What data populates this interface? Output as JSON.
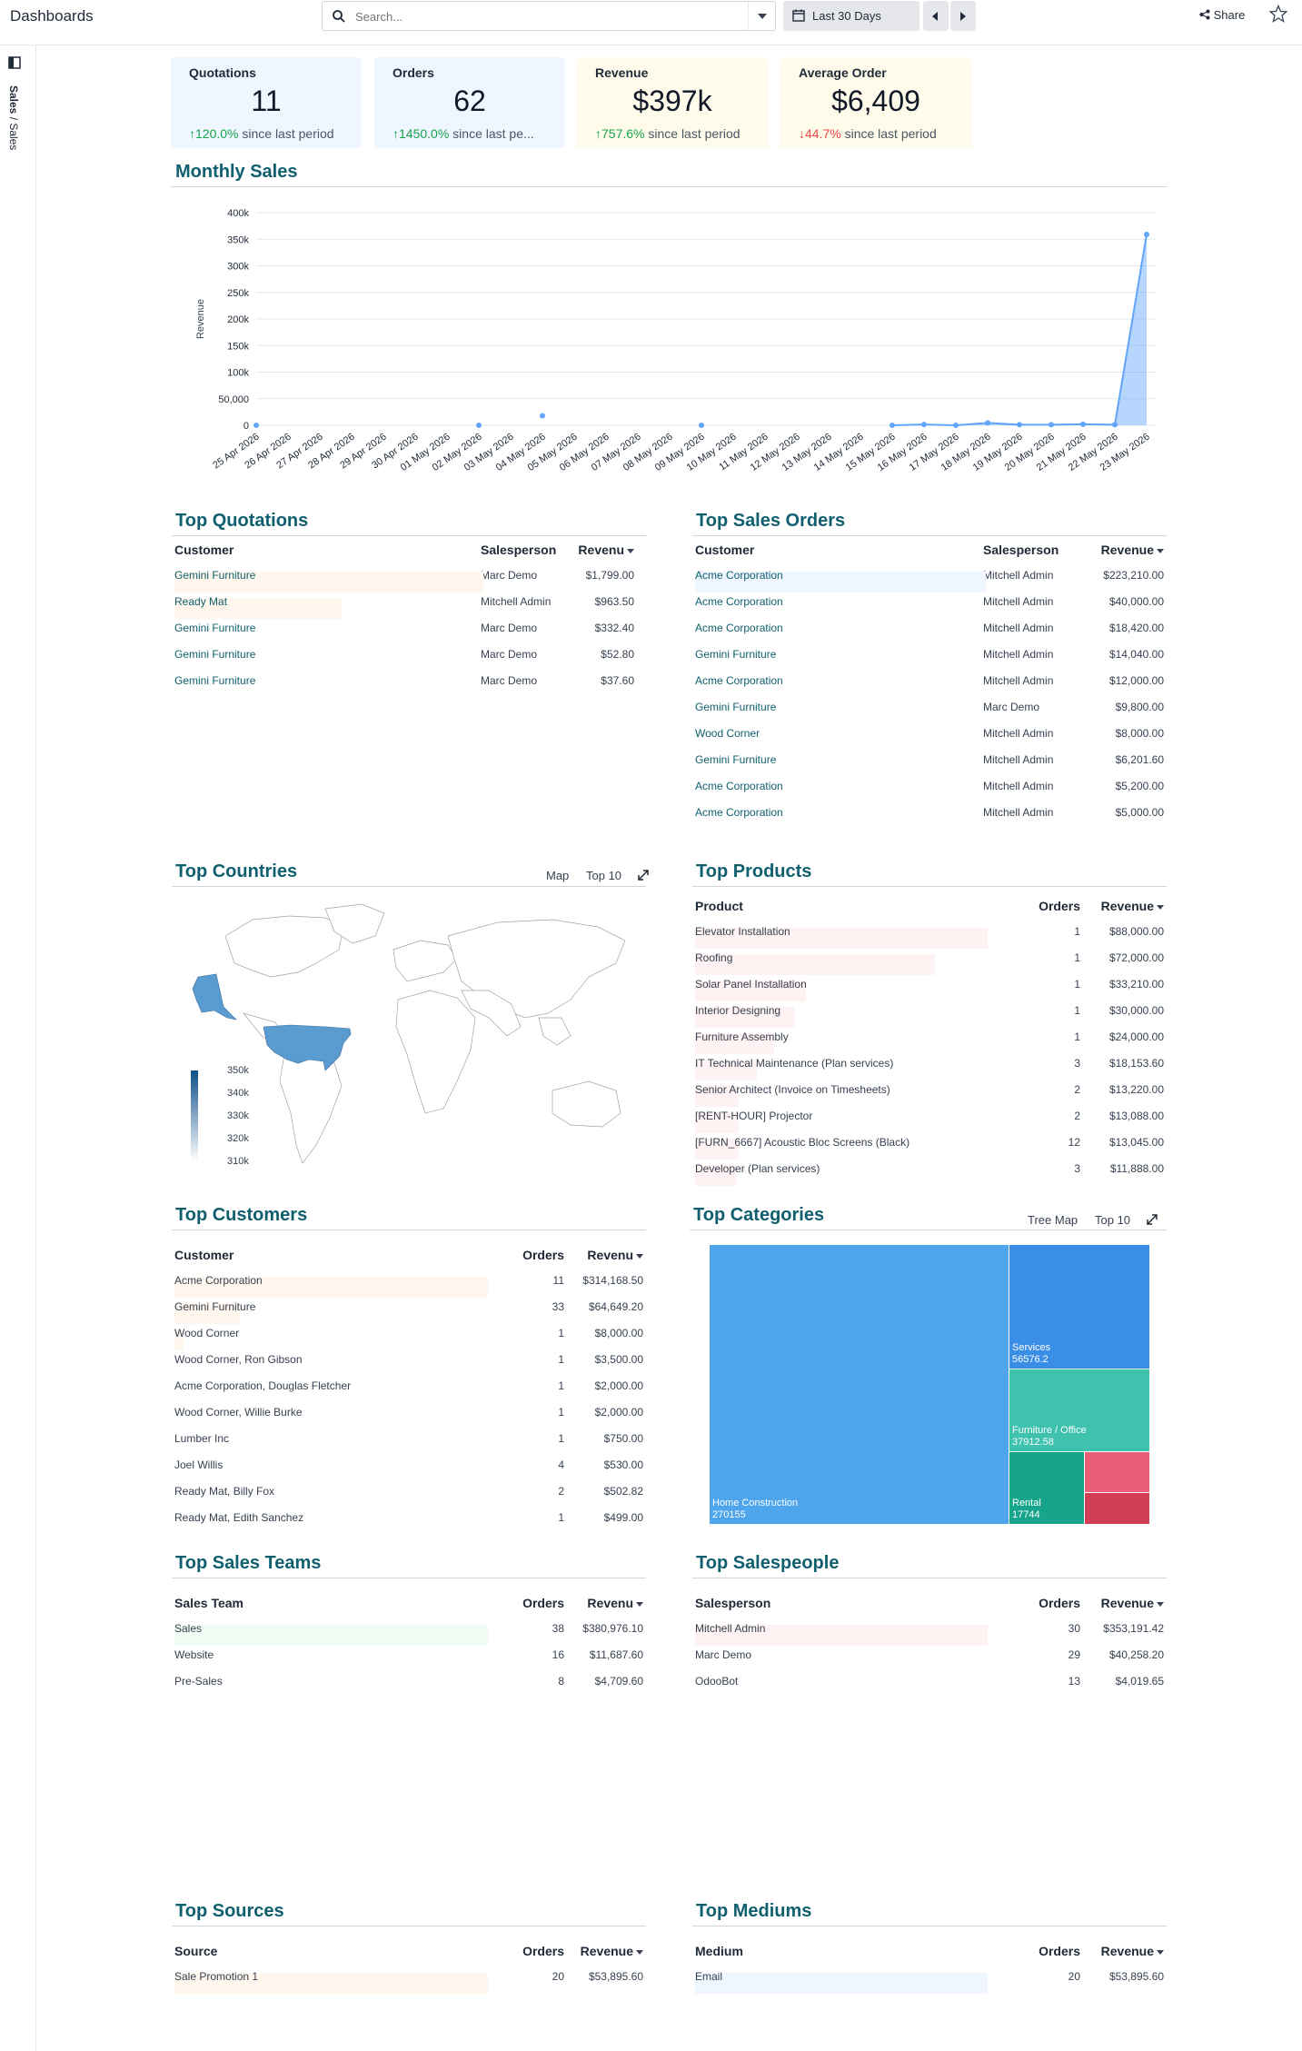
{
  "header": {
    "title": "Dashboards",
    "search_placeholder": "Search...",
    "date_range": "Last 30 Days",
    "share_label": "Share"
  },
  "sidebar": {
    "breadcrumb_bold": "Sales",
    "breadcrumb_rest": " / Sales"
  },
  "kpis": [
    {
      "title": "Quotations",
      "value": "11",
      "delta": "120.0%",
      "delta_dir": "up",
      "suffix": " since last period",
      "bg": "#eff6ff"
    },
    {
      "title": "Orders",
      "value": "62",
      "delta": "1450.0%",
      "delta_dir": "up",
      "suffix": " since last pe...",
      "bg": "#eff6ff"
    },
    {
      "title": "Revenue",
      "value": "$397k",
      "delta": "757.6%",
      "delta_dir": "up",
      "suffix": " since last period",
      "bg": "#fffbeb"
    },
    {
      "title": "Average Order",
      "value": "$6,409",
      "delta": "44.7%",
      "delta_dir": "down",
      "suffix": " since last period",
      "bg": "#fffbeb"
    }
  ],
  "monthly_sales": {
    "title": "Monthly Sales",
    "chart_data": {
      "type": "area",
      "ylabel": "Revenue",
      "ylim": [
        0,
        400000
      ],
      "yticks": [
        "0",
        "50,000",
        "100k",
        "150k",
        "200k",
        "250k",
        "300k",
        "350k",
        "400k"
      ],
      "categories": [
        "25 Apr 2026",
        "26 Apr 2026",
        "27 Apr 2026",
        "28 Apr 2026",
        "29 Apr 2026",
        "30 Apr 2026",
        "01 May 2026",
        "02 May 2026",
        "03 May 2026",
        "04 May 2026",
        "05 May 2026",
        "06 May 2026",
        "07 May 2026",
        "08 May 2026",
        "09 May 2026",
        "10 May 2026",
        "11 May 2026",
        "12 May 2026",
        "13 May 2026",
        "14 May 2026",
        "15 May 2026",
        "16 May 2026",
        "17 May 2026",
        "18 May 2026",
        "19 May 2026",
        "20 May 2026",
        "21 May 2026",
        "22 May 2026",
        "23 May 2026"
      ],
      "values": [
        0,
        null,
        null,
        null,
        null,
        null,
        null,
        0,
        null,
        18000,
        null,
        null,
        null,
        null,
        0,
        null,
        null,
        null,
        null,
        null,
        0,
        1500,
        0,
        4500,
        1000,
        1000,
        2000,
        1000,
        359000
      ],
      "color": "#60a5fa"
    }
  },
  "top_quotations": {
    "title": "Top Quotations",
    "columns": [
      "Customer",
      "Salesperson",
      "Revenu"
    ],
    "rows": [
      {
        "customer": "Gemini Furniture",
        "salesperson": "Marc Demo",
        "revenue": "$1,799.00",
        "share": 1.0
      },
      {
        "customer": "Ready Mat",
        "salesperson": "Mitchell Admin",
        "revenue": "$963.50",
        "share": 0.54
      },
      {
        "customer": "Gemini Furniture",
        "salesperson": "Marc Demo",
        "revenue": "$332.40",
        "share": 0
      },
      {
        "customer": "Gemini Furniture",
        "salesperson": "Marc Demo",
        "revenue": "$52.80",
        "share": 0
      },
      {
        "customer": "Gemini Furniture",
        "salesperson": "Marc Demo",
        "revenue": "$37.60",
        "share": 0
      }
    ],
    "bar_color": "#fff7ed"
  },
  "top_sales_orders": {
    "title": "Top Sales Orders",
    "columns": [
      "Customer",
      "Salesperson",
      "Revenue"
    ],
    "rows": [
      {
        "customer": "Acme Corporation",
        "salesperson": "Mitchell Admin",
        "revenue": "$223,210.00",
        "share": 1.0
      },
      {
        "customer": "Acme Corporation",
        "salesperson": "Mitchell Admin",
        "revenue": "$40,000.00",
        "share": 0
      },
      {
        "customer": "Acme Corporation",
        "salesperson": "Mitchell Admin",
        "revenue": "$18,420.00",
        "share": 0
      },
      {
        "customer": "Gemini Furniture",
        "salesperson": "Mitchell Admin",
        "revenue": "$14,040.00",
        "share": 0
      },
      {
        "customer": "Acme Corporation",
        "salesperson": "Mitchell Admin",
        "revenue": "$12,000.00",
        "share": 0
      },
      {
        "customer": "Gemini Furniture",
        "salesperson": "Marc Demo",
        "revenue": "$9,800.00",
        "share": 0
      },
      {
        "customer": "Wood Corner",
        "salesperson": "Mitchell Admin",
        "revenue": "$8,000.00",
        "share": 0
      },
      {
        "customer": "Gemini Furniture",
        "salesperson": "Mitchell Admin",
        "revenue": "$6,201.60",
        "share": 0
      },
      {
        "customer": "Acme Corporation",
        "salesperson": "Mitchell Admin",
        "revenue": "$5,200.00",
        "share": 0
      },
      {
        "customer": "Acme Corporation",
        "salesperson": "Mitchell Admin",
        "revenue": "$5,000.00",
        "share": 0
      }
    ],
    "bar_color": "#eff6ff"
  },
  "top_countries": {
    "title": "Top Countries",
    "map_label": "Map",
    "topn_label": "Top 10",
    "legend": [
      "350k",
      "340k",
      "330k",
      "320k",
      "310k"
    ],
    "fill": "#5a9bd0"
  },
  "top_products": {
    "title": "Top Products",
    "columns": [
      "Product",
      "Orders",
      "Revenue"
    ],
    "rows": [
      {
        "product": "Elevator Installation",
        "orders": "1",
        "revenue": "$88,000.00",
        "share": 1.0
      },
      {
        "product": "Roofing",
        "orders": "1",
        "revenue": "$72,000.00",
        "share": 0.82
      },
      {
        "product": "Solar Panel Installation",
        "orders": "1",
        "revenue": "$33,210.00",
        "share": 0.38
      },
      {
        "product": "Interior Designing",
        "orders": "1",
        "revenue": "$30,000.00",
        "share": 0.34
      },
      {
        "product": "Furniture Assembly",
        "orders": "1",
        "revenue": "$24,000.00",
        "share": 0.27
      },
      {
        "product": "IT Technical Maintenance (Plan services)",
        "orders": "3",
        "revenue": "$18,153.60",
        "share": 0.21
      },
      {
        "product": "Senior Architect (Invoice on Timesheets)",
        "orders": "2",
        "revenue": "$13,220.00",
        "share": 0.15
      },
      {
        "product": "[RENT-HOUR] Projector",
        "orders": "2",
        "revenue": "$13,088.00",
        "share": 0.15
      },
      {
        "product": "[FURN_6667] Acoustic Bloc Screens (Black)",
        "orders": "12",
        "revenue": "$13,045.00",
        "share": 0.15
      },
      {
        "product": "Developer (Plan services)",
        "orders": "3",
        "revenue": "$11,888.00",
        "share": 0.14
      }
    ],
    "bar_color": "#fef2f2"
  },
  "top_customers": {
    "title": "Top Customers",
    "columns": [
      "Customer",
      "Orders",
      "Revenu"
    ],
    "rows": [
      {
        "customer": "Acme Corporation",
        "orders": "11",
        "revenue": "$314,168.50",
        "share": 1.0
      },
      {
        "customer": "Gemini Furniture",
        "orders": "33",
        "revenue": "$64,649.20",
        "share": 0.21
      },
      {
        "customer": "Wood Corner",
        "orders": "1",
        "revenue": "$8,000.00",
        "share": 0.03
      },
      {
        "customer": "Wood Corner, Ron Gibson",
        "orders": "1",
        "revenue": "$3,500.00",
        "share": 0
      },
      {
        "customer": "Acme Corporation, Douglas Fletcher",
        "orders": "1",
        "revenue": "$2,000.00",
        "share": 0
      },
      {
        "customer": "Wood Corner, Willie Burke",
        "orders": "1",
        "revenue": "$2,000.00",
        "share": 0
      },
      {
        "customer": "Lumber Inc",
        "orders": "1",
        "revenue": "$750.00",
        "share": 0
      },
      {
        "customer": "Joel Willis",
        "orders": "4",
        "revenue": "$530.00",
        "share": 0
      },
      {
        "customer": "Ready Mat, Billy Fox",
        "orders": "2",
        "revenue": "$502.82",
        "share": 0
      },
      {
        "customer": "Ready Mat, Edith Sanchez",
        "orders": "1",
        "revenue": "$499.00",
        "share": 0
      }
    ],
    "bar_color": "#fff7ed"
  },
  "top_categories": {
    "title": "Top Categories",
    "view_label": "Tree Map",
    "topn_label": "Top 10",
    "tiles": [
      {
        "name": "Home Construction",
        "value": "270155",
        "color": "#4ea5ec"
      },
      {
        "name": "Services",
        "value": "56576.2",
        "color": "#3a8ee6"
      },
      {
        "name": "Furniture / Office",
        "value": "37912.58",
        "color": "#3ec1ad"
      },
      {
        "name": "Rental",
        "value": "17744",
        "color": "#16a58a"
      },
      {
        "name": "",
        "value": "",
        "color": "#ea5f78"
      },
      {
        "name": "",
        "value": "",
        "color": "#d23f55"
      }
    ]
  },
  "top_sales_teams": {
    "title": "Top Sales Teams",
    "columns": [
      "Sales Team",
      "Orders",
      "Revenu"
    ],
    "rows": [
      {
        "name": "Sales",
        "orders": "38",
        "revenue": "$380,976.10",
        "share": 1.0
      },
      {
        "name": "Website",
        "orders": "16",
        "revenue": "$11,687.60",
        "share": 0
      },
      {
        "name": "Pre-Sales",
        "orders": "8",
        "revenue": "$4,709.60",
        "share": 0
      }
    ],
    "bar_color": "#f0fdf4"
  },
  "top_salespeople": {
    "title": "Top Salespeople",
    "columns": [
      "Salesperson",
      "Orders",
      "Revenue"
    ],
    "rows": [
      {
        "name": "Mitchell Admin",
        "orders": "30",
        "revenue": "$353,191.42",
        "share": 1.0
      },
      {
        "name": "Marc Demo",
        "orders": "29",
        "revenue": "$40,258.20",
        "share": 0
      },
      {
        "name": "OdooBot",
        "orders": "13",
        "revenue": "$4,019.65",
        "share": 0
      }
    ],
    "bar_color": "#fef2f2"
  },
  "top_sources": {
    "title": "Top Sources",
    "columns": [
      "Source",
      "Orders",
      "Revenue"
    ],
    "rows": [
      {
        "name": "Sale Promotion 1",
        "orders": "20",
        "revenue": "$53,895.60",
        "share": 1.0
      }
    ],
    "bar_color": "#fff7ed"
  },
  "top_mediums": {
    "title": "Top Mediums",
    "columns": [
      "Medium",
      "Orders",
      "Revenue"
    ],
    "rows": [
      {
        "name": "Email",
        "orders": "20",
        "revenue": "$53,895.60",
        "share": 1.0
      }
    ],
    "bar_color": "#eff6ff"
  }
}
